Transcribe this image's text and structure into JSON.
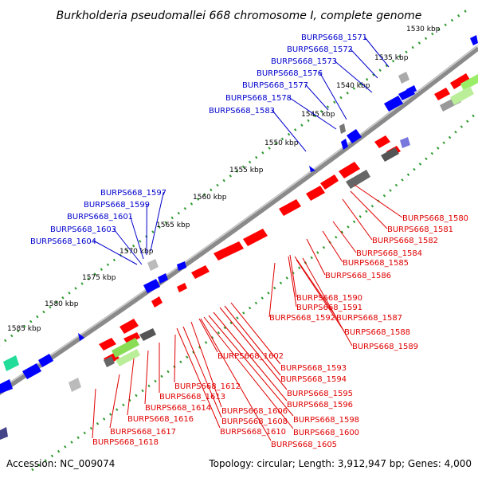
{
  "title": "Burkholderia pseudomallei 668 chromosome I, complete genome",
  "footer": {
    "accession": "Accession: NC_009074",
    "summary": "Topology: circular; Length: 3,912,947 bp; Genes: 4,000"
  },
  "colors": {
    "forward_feature": "#ff0000",
    "reverse_feature": "#0000ff",
    "forward_label": "#e00000",
    "reverse_label": "#0000cc",
    "backbone": "#888888",
    "tick_ring": "#3a9a3a"
  },
  "ticks": [
    {
      "label": "1530 kbp"
    },
    {
      "label": "1535 kbp"
    },
    {
      "label": "1540 kbp"
    },
    {
      "label": "1545 kbp"
    },
    {
      "label": "1550 kbp"
    },
    {
      "label": "1555 kbp"
    },
    {
      "label": "1560 kbp"
    },
    {
      "label": "1565 kbp"
    },
    {
      "label": "1570 kbp"
    },
    {
      "label": "1575 kbp"
    },
    {
      "label": "1580 kbp"
    },
    {
      "label": "1585 kbp"
    }
  ],
  "reverse_gene_labels": [
    "BURPS668_1571",
    "BURPS668_1572",
    "BURPS668_1573",
    "BURPS668_1576",
    "BURPS668_1577",
    "BURPS668_1578",
    "BURPS668_1583",
    "BURPS668_1597",
    "BURPS668_1599",
    "BURPS668_1601",
    "BURPS668_1603",
    "BURPS668_1604"
  ],
  "forward_gene_labels_right": [
    "BURPS668_1580",
    "BURPS668_1581",
    "BURPS668_1582",
    "BURPS668_1584",
    "BURPS668_1585",
    "BURPS668_1586",
    "BURPS668_1590",
    "BURPS668_1591",
    "BURPS668_1592",
    "BURPS668_1587",
    "BURPS668_1588",
    "BURPS668_1589"
  ],
  "forward_gene_labels_bottom": [
    "BURPS668_1602",
    "BURPS668_1593",
    "BURPS668_1594",
    "BURPS668_1612",
    "BURPS668_1613",
    "BURPS668_1595",
    "BURPS668_1614",
    "BURPS668_1596",
    "BURPS668_1606",
    "BURPS668_1616",
    "BURPS668_1608",
    "BURPS668_1598",
    "BURPS668_1617",
    "BURPS668_1610",
    "BURPS668_1600",
    "BURPS668_1618",
    "BURPS668_1605"
  ]
}
